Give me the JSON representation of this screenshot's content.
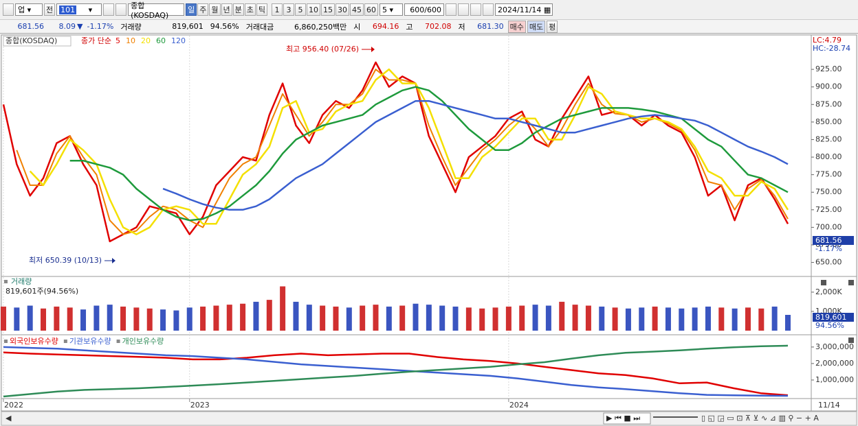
{
  "toolbar": {
    "market": "업",
    "mode": "전",
    "code": "101",
    "name": "종합(KOSDAQ)",
    "periods": [
      "일",
      "주",
      "월",
      "년",
      "분",
      "초",
      "틱"
    ],
    "intervals": [
      "1",
      "3",
      "5",
      "10",
      "15",
      "30",
      "45",
      "60"
    ],
    "interval_select": "5",
    "count": "600",
    "count_max": "/600",
    "date": "2024/11/14"
  },
  "quote": {
    "price": "681.56",
    "change": "8.09",
    "change_arrow": "▼",
    "change_rate": "-1.17%",
    "volume_label": "거래량",
    "volume": "819,601",
    "volume_rate": "94.56%",
    "amount_label": "거래대금",
    "amount": "6,860,250백만",
    "open_label": "시",
    "open": "694.16",
    "high_label": "고",
    "high": "702.08",
    "low_label": "저",
    "low": "681.30",
    "buy": "매수",
    "sell": "매도",
    "avg": "평"
  },
  "chart_data": [
    {
      "type": "line",
      "legend_title": "종가 단순",
      "indicators": [
        "LC:4.79",
        "HC:-28.74"
      ],
      "annotations": [
        "최고 956.40 (07/26)",
        "최저 650.39 (10/13)"
      ],
      "categories": [
        "2022",
        null,
        null,
        null,
        null,
        null,
        null,
        null,
        null,
        null,
        null,
        null,
        null,
        null,
        "2023",
        null,
        null,
        null,
        null,
        null,
        null,
        null,
        null,
        null,
        null,
        null,
        null,
        null,
        null,
        null,
        null,
        null,
        null,
        null,
        null,
        null,
        null,
        null,
        "2024",
        null,
        null,
        null,
        null,
        null,
        null,
        null,
        null,
        null,
        null,
        null,
        null,
        null,
        null,
        null,
        null,
        null,
        null,
        null,
        null,
        null
      ],
      "x_end_label": "11/14",
      "grid": "x",
      "ylim": [
        631,
        973
      ],
      "yticks": [
        {
          "value": 650,
          "label": "650.00"
        },
        {
          "value": 675,
          "label": "675.00"
        },
        {
          "value": 700,
          "label": "700.00"
        },
        {
          "value": 725,
          "label": "725.00"
        },
        {
          "value": 750,
          "label": "750.00"
        },
        {
          "value": 775,
          "label": "775.00"
        },
        {
          "value": 800,
          "label": "800.00"
        },
        {
          "value": 825,
          "label": "825.00"
        },
        {
          "value": 850,
          "label": "850.00"
        },
        {
          "value": 875,
          "label": "875.00"
        },
        {
          "value": 900,
          "label": "900.00"
        },
        {
          "value": 925,
          "label": "925.00"
        }
      ],
      "series": [
        {
          "name": "5",
          "color": "#e00000",
          "width": 2.5,
          "values": [
            875,
            790,
            745,
            770,
            820,
            830,
            790,
            760,
            680,
            690,
            700,
            730,
            725,
            720,
            690,
            715,
            760,
            780,
            800,
            795,
            860,
            905,
            845,
            820,
            860,
            880,
            870,
            895,
            935,
            900,
            915,
            905,
            830,
            790,
            750,
            800,
            815,
            830,
            855,
            865,
            825,
            815,
            855,
            885,
            915,
            860,
            865,
            860,
            845,
            860,
            845,
            835,
            800,
            745,
            760,
            710,
            760,
            770,
            740,
            705
          ]
        },
        {
          "name": "10",
          "color": "#f08000",
          "width": 2,
          "values": [
            null,
            810,
            760,
            760,
            805,
            830,
            800,
            775,
            710,
            690,
            695,
            715,
            730,
            725,
            710,
            700,
            735,
            770,
            790,
            800,
            845,
            890,
            860,
            830,
            850,
            875,
            875,
            890,
            925,
            910,
            910,
            905,
            845,
            800,
            760,
            785,
            810,
            825,
            845,
            860,
            840,
            815,
            840,
            875,
            905,
            875,
            862,
            860,
            850,
            855,
            848,
            838,
            810,
            765,
            760,
            725,
            755,
            768,
            745,
            712
          ]
        },
        {
          "name": "20",
          "color": "#f4e000",
          "width": 2.5,
          "values": [
            null,
            null,
            780,
            760,
            790,
            825,
            810,
            790,
            740,
            700,
            690,
            700,
            725,
            730,
            725,
            705,
            705,
            740,
            775,
            790,
            815,
            870,
            880,
            835,
            840,
            865,
            875,
            880,
            910,
            925,
            905,
            905,
            870,
            820,
            770,
            770,
            800,
            815,
            835,
            855,
            855,
            825,
            825,
            860,
            900,
            890,
            865,
            860,
            855,
            855,
            850,
            840,
            815,
            780,
            770,
            745,
            745,
            765,
            755,
            725
          ]
        },
        {
          "name": "60",
          "color": "#1e9a3c",
          "width": 2.5,
          "values": [
            null,
            null,
            null,
            null,
            null,
            795,
            795,
            790,
            785,
            775,
            755,
            740,
            725,
            715,
            710,
            712,
            720,
            730,
            745,
            760,
            780,
            805,
            825,
            835,
            845,
            850,
            855,
            860,
            875,
            885,
            895,
            900,
            895,
            880,
            860,
            840,
            825,
            810,
            810,
            820,
            835,
            845,
            855,
            860,
            865,
            870,
            870,
            870,
            868,
            865,
            860,
            855,
            840,
            825,
            815,
            795,
            775,
            770,
            760,
            750
          ]
        },
        {
          "name": "120",
          "color": "#3a5fd0",
          "width": 2.5,
          "values": [
            null,
            null,
            null,
            null,
            null,
            null,
            null,
            null,
            null,
            null,
            null,
            null,
            755,
            748,
            740,
            733,
            728,
            725,
            725,
            730,
            740,
            755,
            770,
            780,
            790,
            805,
            820,
            835,
            850,
            860,
            870,
            880,
            880,
            875,
            870,
            865,
            860,
            855,
            855,
            850,
            845,
            840,
            835,
            835,
            840,
            845,
            850,
            855,
            858,
            860,
            858,
            855,
            852,
            845,
            835,
            825,
            815,
            808,
            800,
            790
          ]
        }
      ]
    },
    {
      "type": "bar",
      "title": "거래량",
      "subtitle": "819,601주(94.56%)",
      "up_color": "#d03030",
      "down_color": "#3a55c0",
      "ylim": [
        0,
        2780
      ],
      "yticks": [
        {
          "value": 1000,
          "label": "1,000K"
        },
        {
          "value": 2000,
          "label": "2,000K"
        }
      ],
      "values": [
        1250,
        1200,
        1300,
        1150,
        1250,
        1200,
        1100,
        1300,
        1350,
        1250,
        1200,
        1150,
        1100,
        1050,
        1200,
        1250,
        1300,
        1350,
        1400,
        1500,
        1600,
        2300,
        1500,
        1350,
        1300,
        1250,
        1200,
        1300,
        1350,
        1250,
        1300,
        1400,
        1350,
        1300,
        1250,
        1200,
        1150,
        1200,
        1250,
        1300,
        1350,
        1300,
        1500,
        1350,
        1300,
        1250,
        1200,
        1150,
        1200,
        1250,
        1200,
        1150,
        1200,
        1250,
        1200,
        1150,
        1200,
        1150,
        1250,
        819.601
      ]
    },
    {
      "type": "line",
      "ylim": [
        0,
        3660000
      ],
      "yticks": [
        {
          "value": 1000000,
          "label": "1,000,000"
        },
        {
          "value": 2000000,
          "label": "2,000,000"
        },
        {
          "value": 3000000,
          "label": "3,000,000"
        }
      ],
      "series": [
        {
          "name": "외국인보유수량",
          "color": "#e00000",
          "width": 2.5,
          "values": [
            2670000,
            2600000,
            2550000,
            2500000,
            2450000,
            2400000,
            2350000,
            2250000,
            2250000,
            2350000,
            2500000,
            2600000,
            2500000,
            2550000,
            2600000,
            2600000,
            2400000,
            2250000,
            2150000,
            2000000,
            1800000,
            1600000,
            1400000,
            1300000,
            1100000,
            800000,
            850000,
            500000,
            200000,
            80000
          ]
        },
        {
          "name": "기관보유수량",
          "color": "#3a5fd0",
          "width": 2.5,
          "values": [
            3000000,
            2950000,
            2900000,
            2800000,
            2700000,
            2600000,
            2500000,
            2450000,
            2350000,
            2250000,
            2100000,
            1950000,
            1850000,
            1750000,
            1650000,
            1550000,
            1450000,
            1350000,
            1250000,
            1100000,
            900000,
            700000,
            550000,
            450000,
            320000,
            200000,
            100000,
            70000,
            50000,
            40000
          ]
        },
        {
          "name": "개인보유수량",
          "color": "#2e8b57",
          "width": 2.5,
          "values": [
            0,
            150000,
            300000,
            400000,
            450000,
            500000,
            580000,
            660000,
            750000,
            850000,
            950000,
            1050000,
            1150000,
            1250000,
            1380000,
            1500000,
            1600000,
            1700000,
            1800000,
            1950000,
            2080000,
            2300000,
            2500000,
            2650000,
            2720000,
            2800000,
            2900000,
            2980000,
            3050000,
            3080000
          ]
        }
      ]
    }
  ]
}
